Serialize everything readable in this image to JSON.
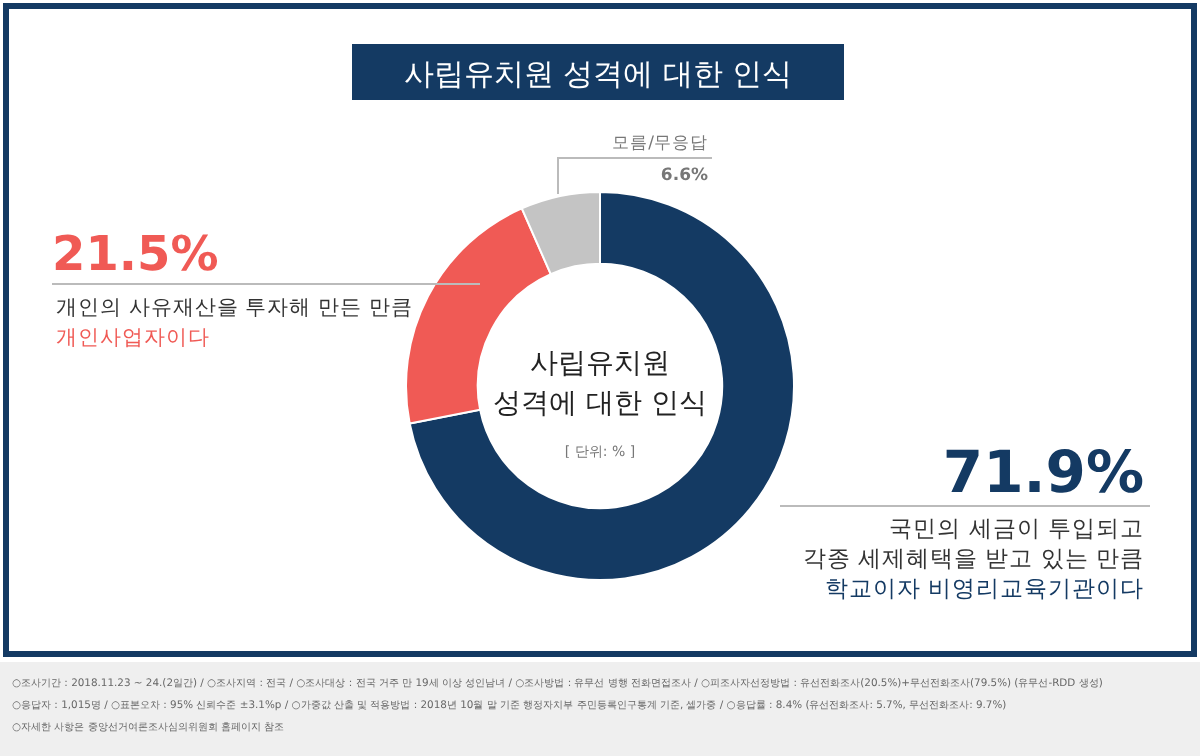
{
  "chart_data": {
    "type": "donut",
    "title": "사립유치원 성격에 대한 인식",
    "categories": [
      "국민의 세금이 투입되고\n각종 세제혜택을 받고 있는 만큼\n학교이자 비영리교육기관이다",
      "개인의 사유재산을 투자해 만든 만큼\n개인사업자이다",
      "모름/무응답"
    ],
    "values": [
      71.9,
      21.5,
      6.6
    ],
    "colors": [
      "#143a63",
      "#f05a55",
      "#c4c4c4"
    ],
    "value_labels": [
      "71.9%",
      "21.5%",
      "6.6%"
    ],
    "annotations": [
      "사립유치원\n성격에 대한 인식",
      "[ 단위: % ]",
      "○조사기간 : 2018.11.23 ~ 24.(2일간) / ○조사지역 : 전국 / ○조사대상 : 전국 거주 만 19세 이상 성인남녀 / ○조사방법 : 유무선 병행 전화면접조사 / ○피조사자선정방법 : 유선전화조사(20.5%)+무선전화조사(79.5%) (유무선-RDD 생성)",
      "○응답자 : 1,015명 / ○표본오차 : 95% 신뢰수준 ±3.1%p / ○가중값 산출 및 적용방법 : 2018년 10월 말 기준 행정자치부 주민등록인구통계 기준, 셀가중 / ○응답률 : 8.4% (유선전화조사: 5.7%, 무선전화조사: 9.7%)",
      "○자세한 사항은 중앙선거여론조사심의위원회 홈페이지 참조"
    ]
  }
}
